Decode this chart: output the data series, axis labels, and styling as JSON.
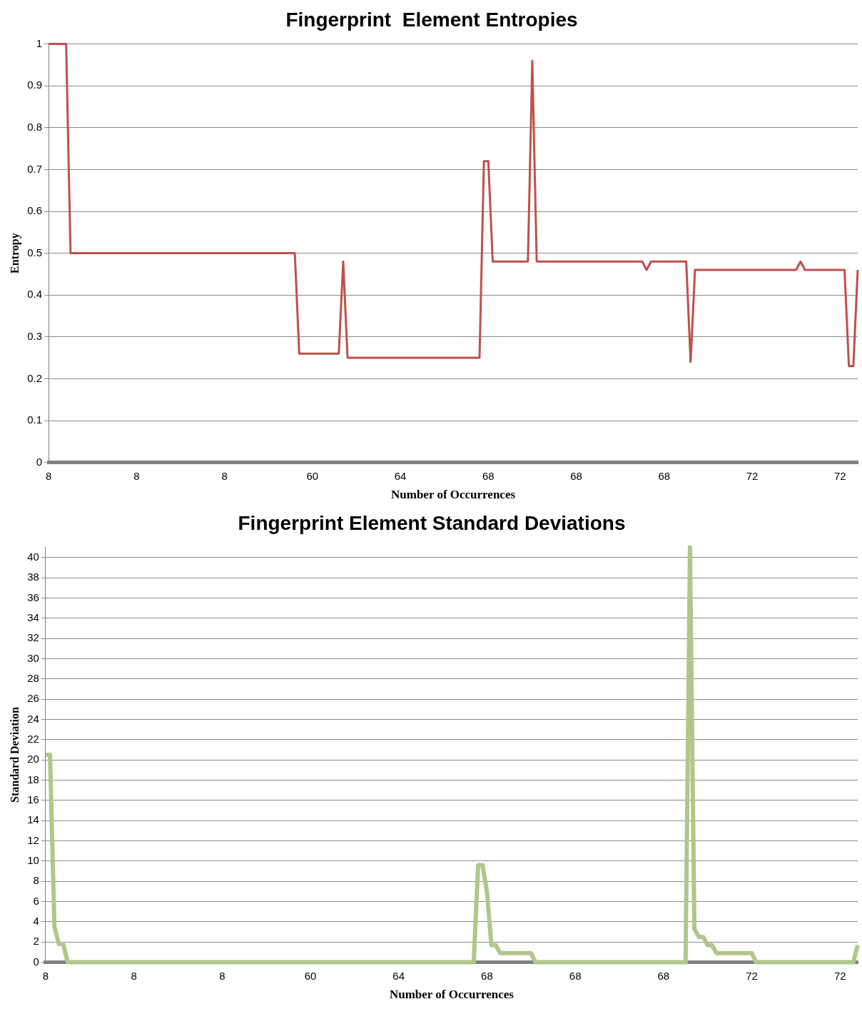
{
  "chart_data": [
    {
      "type": "line",
      "title": "Fingerprint  Element Entropies",
      "xlabel": "Number of Occurrences",
      "ylabel": "Entropy",
      "categories": [
        "8",
        null,
        null,
        null,
        null,
        null,
        null,
        null,
        null,
        null,
        null,
        null,
        null,
        null,
        null,
        null,
        null,
        null,
        null,
        null,
        "8",
        null,
        null,
        null,
        null,
        null,
        null,
        null,
        null,
        null,
        null,
        null,
        null,
        null,
        null,
        null,
        null,
        null,
        null,
        null,
        "8",
        null,
        null,
        null,
        null,
        null,
        null,
        null,
        null,
        null,
        null,
        null,
        null,
        null,
        null,
        null,
        null,
        null,
        null,
        null,
        "60",
        null,
        null,
        null,
        null,
        null,
        null,
        null,
        null,
        null,
        null,
        null,
        null,
        null,
        null,
        null,
        null,
        null,
        null,
        null,
        "64",
        null,
        null,
        null,
        null,
        null,
        null,
        null,
        null,
        null,
        null,
        null,
        null,
        null,
        null,
        null,
        null,
        null,
        null,
        null,
        "68",
        null,
        null,
        null,
        null,
        null,
        null,
        null,
        null,
        null,
        null,
        null,
        null,
        null,
        null,
        null,
        null,
        null,
        null,
        null,
        "68",
        null,
        null,
        null,
        null,
        null,
        null,
        null,
        null,
        null,
        null,
        null,
        null,
        null,
        null,
        null,
        null,
        null,
        null,
        null,
        "68",
        null,
        null,
        null,
        null,
        null,
        null,
        null,
        null,
        null,
        null,
        null,
        null,
        null,
        null,
        null,
        null,
        null,
        null,
        null,
        "72",
        null,
        null,
        null,
        null,
        null,
        null,
        null,
        null,
        null,
        null,
        null,
        null,
        null,
        null,
        null,
        null,
        null,
        null,
        null,
        "72",
        null,
        null,
        null,
        null
      ],
      "series": [
        {
          "color": "#c0504d",
          "values": [
            1,
            1,
            1,
            1,
            1,
            0.5,
            0.5,
            0.5,
            0.5,
            0.5,
            0.5,
            0.5,
            0.5,
            0.5,
            0.5,
            0.5,
            0.5,
            0.5,
            0.5,
            0.5,
            0.5,
            0.5,
            0.5,
            0.5,
            0.5,
            0.5,
            0.5,
            0.5,
            0.5,
            0.5,
            0.5,
            0.5,
            0.5,
            0.5,
            0.5,
            0.5,
            0.5,
            0.5,
            0.5,
            0.5,
            0.5,
            0.5,
            0.5,
            0.5,
            0.5,
            0.5,
            0.5,
            0.5,
            0.5,
            0.5,
            0.5,
            0.5,
            0.5,
            0.5,
            0.5,
            0.5,
            0.5,
            0.26,
            0.26,
            0.26,
            0.26,
            0.26,
            0.26,
            0.26,
            0.26,
            0.26,
            0.26,
            0.48,
            0.25,
            0.25,
            0.25,
            0.25,
            0.25,
            0.25,
            0.25,
            0.25,
            0.25,
            0.25,
            0.25,
            0.25,
            0.25,
            0.25,
            0.25,
            0.25,
            0.25,
            0.25,
            0.25,
            0.25,
            0.25,
            0.25,
            0.25,
            0.25,
            0.25,
            0.25,
            0.25,
            0.25,
            0.25,
            0.25,
            0.25,
            0.72,
            0.72,
            0.48,
            0.48,
            0.48,
            0.48,
            0.48,
            0.48,
            0.48,
            0.48,
            0.48,
            0.96,
            0.48,
            0.48,
            0.48,
            0.48,
            0.48,
            0.48,
            0.48,
            0.48,
            0.48,
            0.48,
            0.48,
            0.48,
            0.48,
            0.48,
            0.48,
            0.48,
            0.48,
            0.48,
            0.48,
            0.48,
            0.48,
            0.48,
            0.48,
            0.48,
            0.48,
            0.46,
            0.48,
            0.48,
            0.48,
            0.48,
            0.48,
            0.48,
            0.48,
            0.48,
            0.48,
            0.24,
            0.46,
            0.46,
            0.46,
            0.46,
            0.46,
            0.46,
            0.46,
            0.46,
            0.46,
            0.46,
            0.46,
            0.46,
            0.46,
            0.46,
            0.46,
            0.46,
            0.46,
            0.46,
            0.46,
            0.46,
            0.46,
            0.46,
            0.46,
            0.46,
            0.48,
            0.46,
            0.46,
            0.46,
            0.46,
            0.46,
            0.46,
            0.46,
            0.46,
            0.46,
            0.46,
            0.23,
            0.23,
            0.46
          ]
        }
      ],
      "ylim": [
        0,
        1
      ],
      "yticks": [
        0,
        0.1,
        0.2,
        0.3,
        0.4,
        0.5,
        0.6,
        0.7,
        0.8,
        0.9,
        1
      ],
      "grid": "y",
      "legend": false,
      "marker": "none",
      "line_style": "solid"
    },
    {
      "type": "line",
      "title": "Fingerprint Element Standard Deviations",
      "xlabel": "Number of Occurrences",
      "ylabel": "Standard Deviation",
      "categories": [
        "8",
        null,
        null,
        null,
        null,
        null,
        null,
        null,
        null,
        null,
        null,
        null,
        null,
        null,
        null,
        null,
        null,
        null,
        null,
        null,
        "8",
        null,
        null,
        null,
        null,
        null,
        null,
        null,
        null,
        null,
        null,
        null,
        null,
        null,
        null,
        null,
        null,
        null,
        null,
        null,
        "8",
        null,
        null,
        null,
        null,
        null,
        null,
        null,
        null,
        null,
        null,
        null,
        null,
        null,
        null,
        null,
        null,
        null,
        null,
        null,
        "60",
        null,
        null,
        null,
        null,
        null,
        null,
        null,
        null,
        null,
        null,
        null,
        null,
        null,
        null,
        null,
        null,
        null,
        null,
        null,
        "64",
        null,
        null,
        null,
        null,
        null,
        null,
        null,
        null,
        null,
        null,
        null,
        null,
        null,
        null,
        null,
        null,
        null,
        null,
        null,
        "68",
        null,
        null,
        null,
        null,
        null,
        null,
        null,
        null,
        null,
        null,
        null,
        null,
        null,
        null,
        null,
        null,
        null,
        null,
        null,
        "68",
        null,
        null,
        null,
        null,
        null,
        null,
        null,
        null,
        null,
        null,
        null,
        null,
        null,
        null,
        null,
        null,
        null,
        null,
        null,
        "68",
        null,
        null,
        null,
        null,
        null,
        null,
        null,
        null,
        null,
        null,
        null,
        null,
        null,
        null,
        null,
        null,
        null,
        null,
        null,
        "72",
        null,
        null,
        null,
        null,
        null,
        null,
        null,
        null,
        null,
        null,
        null,
        null,
        null,
        null,
        null,
        null,
        null,
        null,
        null,
        "72",
        null,
        null,
        null,
        null
      ],
      "series": [
        {
          "color": "#afc88a",
          "values": [
            20.5,
            20.5,
            3.5,
            1.8,
            1.8,
            0,
            0,
            0,
            0,
            0,
            0,
            0,
            0,
            0,
            0,
            0,
            0,
            0,
            0,
            0,
            0,
            0,
            0,
            0,
            0,
            0,
            0,
            0,
            0,
            0,
            0,
            0,
            0,
            0,
            0,
            0,
            0,
            0,
            0,
            0,
            0,
            0,
            0,
            0,
            0,
            0,
            0,
            0,
            0,
            0,
            0,
            0,
            0,
            0,
            0,
            0,
            0,
            0,
            0,
            0,
            0,
            0,
            0,
            0,
            0,
            0,
            0,
            0,
            0,
            0,
            0,
            0,
            0,
            0,
            0,
            0,
            0,
            0,
            0,
            0,
            0,
            0,
            0,
            0,
            0,
            0,
            0,
            0,
            0,
            0,
            0,
            0,
            0,
            0,
            0,
            0,
            0,
            0,
            9.6,
            9.6,
            7,
            1.7,
            1.7,
            0.9,
            0.9,
            0.9,
            0.9,
            0.9,
            0.9,
            0.9,
            0.9,
            0,
            0,
            0,
            0,
            0,
            0,
            0,
            0,
            0,
            0,
            0,
            0,
            0,
            0,
            0,
            0,
            0,
            0,
            0,
            0,
            0,
            0,
            0,
            0,
            0,
            0,
            0,
            0,
            0,
            0,
            0,
            0,
            0,
            0,
            0,
            41,
            3.3,
            2.5,
            2.5,
            1.7,
            1.7,
            0.9,
            0.9,
            0.9,
            0.9,
            0.9,
            0.9,
            0.9,
            0.9,
            0.9,
            0,
            0,
            0,
            0,
            0,
            0,
            0,
            0,
            0,
            0,
            0,
            0,
            0,
            0,
            0,
            0,
            0,
            0,
            0,
            0,
            0,
            0,
            0,
            1.7
          ]
        }
      ],
      "ylim": [
        0,
        41
      ],
      "yticks": [
        0,
        2,
        4,
        6,
        8,
        10,
        12,
        14,
        16,
        18,
        20,
        22,
        24,
        26,
        28,
        30,
        32,
        34,
        36,
        38,
        40
      ],
      "grid": "y",
      "legend": false,
      "marker": "none",
      "line_style": "solid"
    }
  ]
}
